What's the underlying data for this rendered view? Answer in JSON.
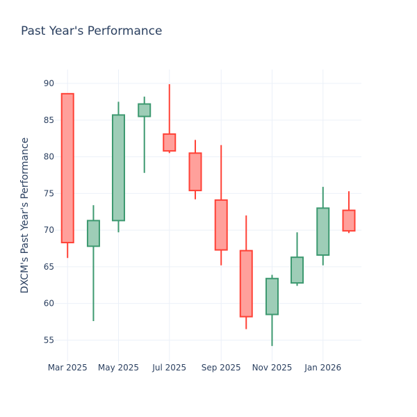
{
  "chart_data": {
    "type": "candlestick",
    "title": "Past Year's Performance",
    "xlabel": "",
    "ylabel": "DXCM's Past Year's Performance",
    "xlim": [
      "2025-02-13",
      "2026-02-16"
    ],
    "ylim": [
      52.1,
      91.9
    ],
    "grid": true,
    "x_ticks": [
      {
        "date": "2025-03-01",
        "label": "Mar 2025"
      },
      {
        "date": "2025-05-01",
        "label": "May 2025"
      },
      {
        "date": "2025-07-01",
        "label": "Jul 2025"
      },
      {
        "date": "2025-09-01",
        "label": "Sep 2025"
      },
      {
        "date": "2025-11-01",
        "label": "Nov 2025"
      },
      {
        "date": "2026-01-01",
        "label": "Jan 2026"
      }
    ],
    "y_ticks": [
      55,
      60,
      65,
      70,
      75,
      80,
      85,
      90
    ],
    "colors": {
      "increasing": "#3d9970",
      "increasing_fill": "#9ecdb7",
      "decreasing": "#ff4136",
      "decreasing_fill": "#ffa09b"
    },
    "candles": [
      {
        "date": "2025-03-01",
        "open": 88.6,
        "high": 88.6,
        "low": 66.2,
        "close": 68.3
      },
      {
        "date": "2025-04-01",
        "open": 67.8,
        "high": 73.4,
        "low": 57.6,
        "close": 71.3
      },
      {
        "date": "2025-05-01",
        "open": 71.3,
        "high": 87.5,
        "low": 69.7,
        "close": 85.7
      },
      {
        "date": "2025-06-01",
        "open": 85.5,
        "high": 88.2,
        "low": 77.8,
        "close": 87.2
      },
      {
        "date": "2025-07-01",
        "open": 83.1,
        "high": 89.9,
        "low": 80.5,
        "close": 80.8
      },
      {
        "date": "2025-08-01",
        "open": 80.5,
        "high": 82.3,
        "low": 74.2,
        "close": 75.4
      },
      {
        "date": "2025-09-01",
        "open": 74.1,
        "high": 81.6,
        "low": 65.2,
        "close": 67.3
      },
      {
        "date": "2025-10-01",
        "open": 67.2,
        "high": 72.0,
        "low": 56.5,
        "close": 58.2
      },
      {
        "date": "2025-11-01",
        "open": 58.5,
        "high": 63.9,
        "low": 54.2,
        "close": 63.4
      },
      {
        "date": "2025-12-01",
        "open": 62.8,
        "high": 69.7,
        "low": 62.4,
        "close": 66.3
      },
      {
        "date": "2026-01-01",
        "open": 66.6,
        "high": 75.9,
        "low": 65.2,
        "close": 73.0
      },
      {
        "date": "2026-02-01",
        "open": 72.7,
        "high": 75.3,
        "low": 69.6,
        "close": 69.9
      }
    ]
  }
}
